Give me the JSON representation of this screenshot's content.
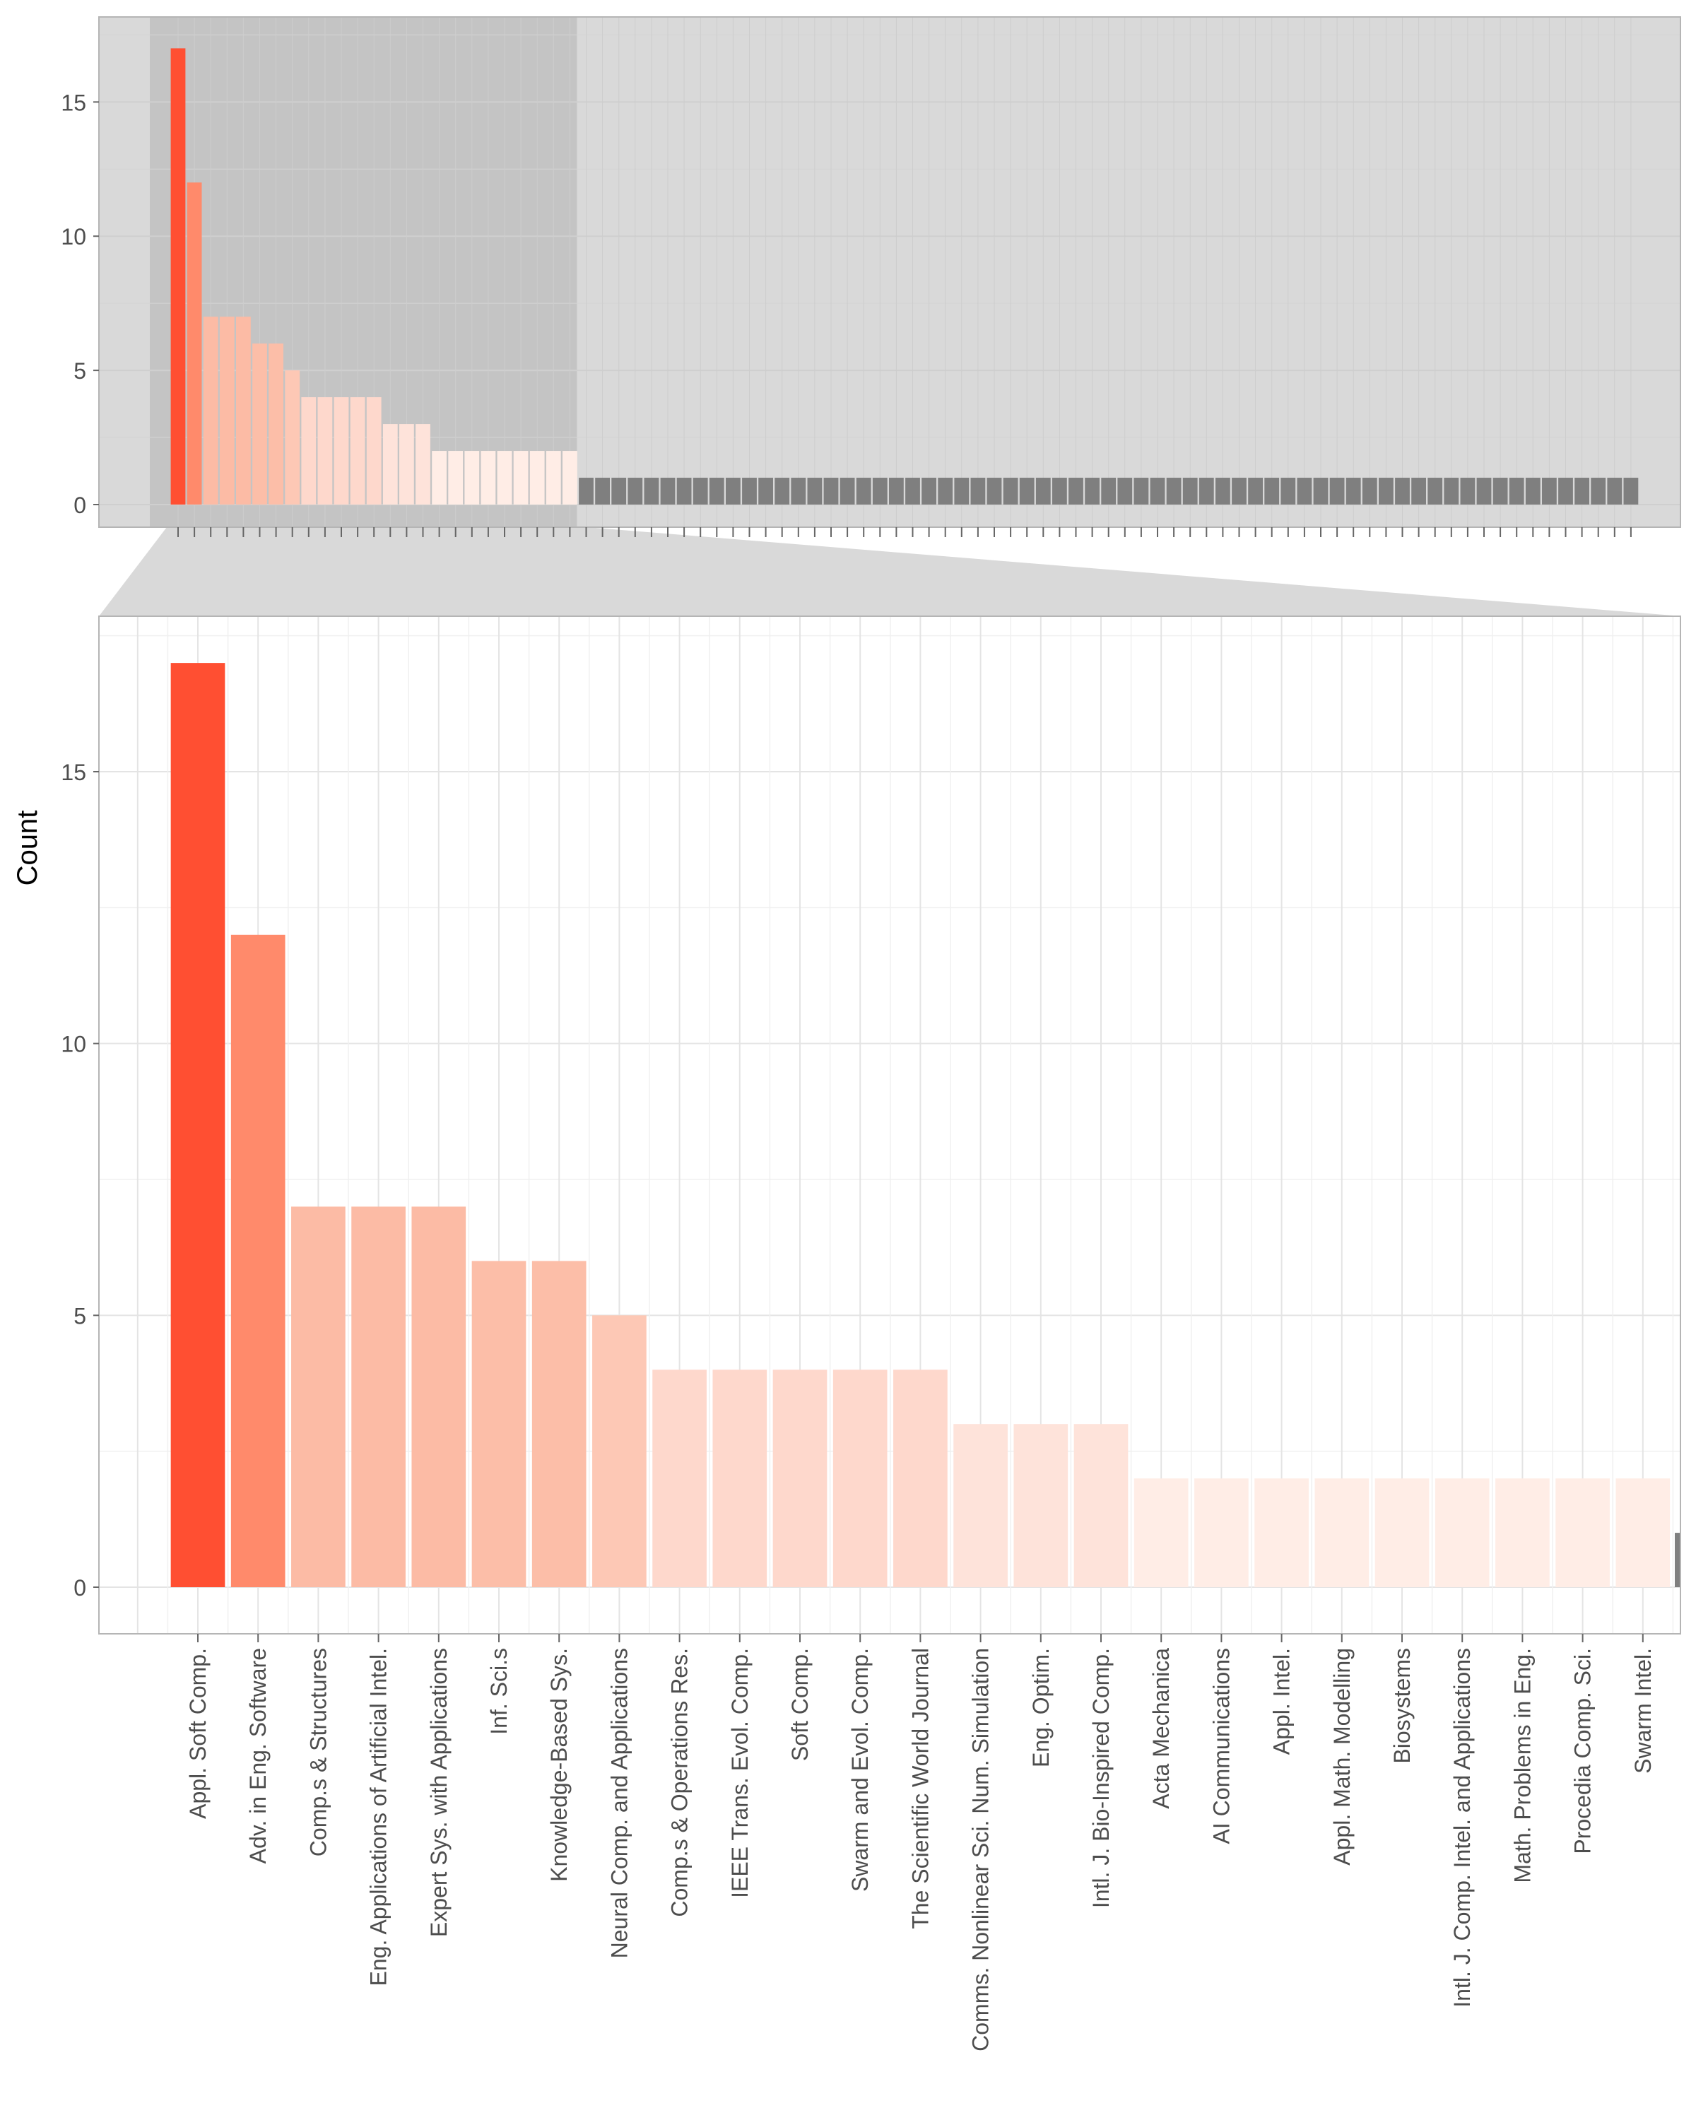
{
  "chart_data": [
    {
      "type": "bar",
      "panel": "overview",
      "ylim": [
        0,
        17.8
      ],
      "yticks": [
        0,
        5,
        10,
        15
      ],
      "grid": true,
      "zoom_region_highlighted": true,
      "values": [
        17,
        12,
        7,
        7,
        7,
        6,
        6,
        5,
        4,
        4,
        4,
        4,
        4,
        3,
        3,
        3,
        2,
        2,
        2,
        2,
        2,
        2,
        2,
        2,
        2,
        1,
        1,
        1,
        1,
        1,
        1,
        1,
        1,
        1,
        1,
        1,
        1,
        1,
        1,
        1,
        1,
        1,
        1,
        1,
        1,
        1,
        1,
        1,
        1,
        1,
        1,
        1,
        1,
        1,
        1,
        1,
        1,
        1,
        1,
        1,
        1,
        1,
        1,
        1,
        1,
        1,
        1,
        1,
        1,
        1,
        1,
        1,
        1,
        1,
        1,
        1,
        1,
        1,
        1,
        1,
        1,
        1,
        1,
        1,
        1,
        1,
        1,
        1,
        1,
        1
      ]
    },
    {
      "type": "bar",
      "panel": "zoomed",
      "ylabel": "Count",
      "ylim": [
        0,
        17.8
      ],
      "yticks": [
        0,
        5,
        10,
        15
      ],
      "grid": true,
      "categories": [
        "Appl. Soft Comp.",
        "Adv. in Eng. Software",
        "Comp.s & Structures",
        "Eng. Applications of Artificial Intel.",
        "Expert Sys. with Applications",
        "Inf. Sci.s",
        "Knowledge-Based Sys.",
        "Neural Comp. and Applications",
        "Comp.s & Operations Res.",
        "IEEE Trans. Evol. Comp.",
        "Soft Comp.",
        "Swarm and Evol. Comp.",
        "The Scientific World Journal",
        "Comms. Nonlinear Sci. Num. Simulation",
        "Eng. Optim.",
        "Intl. J. Bio-Inspired Comp.",
        "Acta Mechanica",
        "AI Communications",
        "Appl. Intel.",
        "Appl. Math. Modelling",
        "Biosystems",
        "Intl. J. Comp. Intel. and Applications",
        "Math. Problems in Eng.",
        "Procedia Comp. Sci.",
        "Swarm Intel."
      ],
      "values": [
        17,
        12,
        7,
        7,
        7,
        6,
        6,
        5,
        4,
        4,
        4,
        4,
        4,
        3,
        3,
        3,
        2,
        2,
        2,
        2,
        2,
        2,
        2,
        2,
        2
      ],
      "partial_next_value": 1
    }
  ],
  "colors": {
    "count_17": "#ff4f32",
    "count_12": "#ff8a6b",
    "count_7": "#fcbba5",
    "count_6": "#fcbea8",
    "count_5": "#fdc8b5",
    "count_4": "#fed8cc",
    "count_3": "#fee3da",
    "count_2": "#ffede6",
    "count_1": "#7f7f7f",
    "panel_bg": "#d9d9d9",
    "zoom_region_bg": "#c4c4c4",
    "connector_fill": "#d9d9d9",
    "grid_major": "#e4e4e4",
    "grid_minor": "#f0f0f0"
  }
}
